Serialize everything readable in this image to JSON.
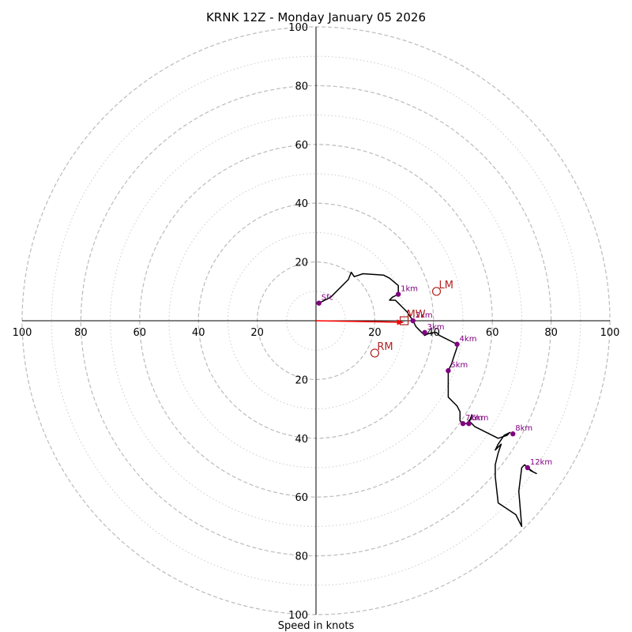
{
  "chart_data": {
    "type": "hodograph",
    "title": "KRNK 12Z - Monday January 05 2026",
    "xlabel": "Speed in knots",
    "units": "knots",
    "max_speed": 100,
    "major_rings": [
      20,
      40,
      60,
      80,
      100
    ],
    "minor_rings": [
      10,
      30,
      50,
      70,
      90
    ],
    "tick_labels": [
      "20",
      "40",
      "60",
      "80",
      "100"
    ],
    "colors": {
      "hodograph_line": "#000000",
      "height_marker": "#800080",
      "motion": "#b22222",
      "shear_vector": "#ff0000",
      "ring_major": "#bbbbbb",
      "ring_minor": "#cccccc"
    },
    "hodograph_path": [
      [
        1,
        6
      ],
      [
        5,
        8
      ],
      [
        11,
        14
      ],
      [
        12,
        16.5
      ],
      [
        13,
        15
      ],
      [
        16,
        16
      ],
      [
        23,
        15.5
      ],
      [
        25,
        14.5
      ],
      [
        28,
        12
      ],
      [
        28,
        9
      ],
      [
        26,
        8
      ],
      [
        25,
        7
      ],
      [
        27,
        7
      ],
      [
        28,
        6
      ],
      [
        30,
        4
      ],
      [
        31,
        3
      ],
      [
        32,
        1.5
      ],
      [
        33,
        0
      ],
      [
        34,
        -2
      ],
      [
        35,
        -3
      ],
      [
        36,
        -4
      ],
      [
        37,
        -5
      ],
      [
        38,
        -4.5
      ],
      [
        40,
        -4
      ],
      [
        41,
        -4
      ],
      [
        42,
        -5
      ],
      [
        44,
        -6
      ],
      [
        46,
        -7
      ],
      [
        48,
        -8
      ],
      [
        48,
        -9
      ],
      [
        47,
        -12
      ],
      [
        46,
        -15
      ],
      [
        45,
        -17
      ],
      [
        45,
        -21
      ],
      [
        45,
        -26
      ],
      [
        46,
        -27
      ],
      [
        48,
        -29
      ],
      [
        49,
        -31
      ],
      [
        49,
        -34
      ],
      [
        50,
        -35
      ],
      [
        51,
        -35
      ],
      [
        52,
        -35
      ],
      [
        53,
        -32
      ],
      [
        53,
        -33
      ],
      [
        52,
        -34
      ],
      [
        53,
        -35
      ],
      [
        54,
        -36
      ],
      [
        58,
        -38
      ],
      [
        62,
        -40
      ],
      [
        65,
        -39
      ],
      [
        66,
        -38
      ],
      [
        64,
        -39
      ],
      [
        62,
        -42
      ],
      [
        61,
        -44
      ],
      [
        63,
        -42
      ],
      [
        62,
        -45
      ],
      [
        61,
        -49
      ],
      [
        61,
        -53
      ],
      [
        62,
        -62
      ],
      [
        68,
        -66
      ],
      [
        70,
        -70
      ],
      [
        69,
        -58
      ],
      [
        70,
        -50
      ],
      [
        71,
        -49
      ],
      [
        73,
        -51
      ],
      [
        75,
        -52
      ],
      [
        74,
        -51.5
      ],
      [
        72,
        -50
      ]
    ],
    "height_markers": [
      {
        "label": "Sfc",
        "u": 1,
        "v": 6
      },
      {
        "label": "1km",
        "u": 28,
        "v": 9
      },
      {
        "label": "2km",
        "u": 33,
        "v": 0
      },
      {
        "label": "3km",
        "u": 37,
        "v": -4
      },
      {
        "label": "4km",
        "u": 48,
        "v": -8
      },
      {
        "label": "5km",
        "u": 45,
        "v": -17
      },
      {
        "label": "6km",
        "u": 52,
        "v": -35
      },
      {
        "label": "7km",
        "u": 50,
        "v": -35
      },
      {
        "label": "8km",
        "u": 67,
        "v": -38.5
      },
      {
        "label": "12km",
        "u": 72,
        "v": -50
      }
    ],
    "storm_motions": [
      {
        "label": "LM",
        "u": 41,
        "v": 10,
        "marker": "circle"
      },
      {
        "label": "RM",
        "u": 20,
        "v": -11,
        "marker": "circle"
      },
      {
        "label": "MW",
        "u": 30,
        "v": 0,
        "marker": "square"
      }
    ],
    "shear_vector": {
      "from": [
        0,
        0
      ],
      "to": [
        30,
        -0.5
      ]
    }
  }
}
